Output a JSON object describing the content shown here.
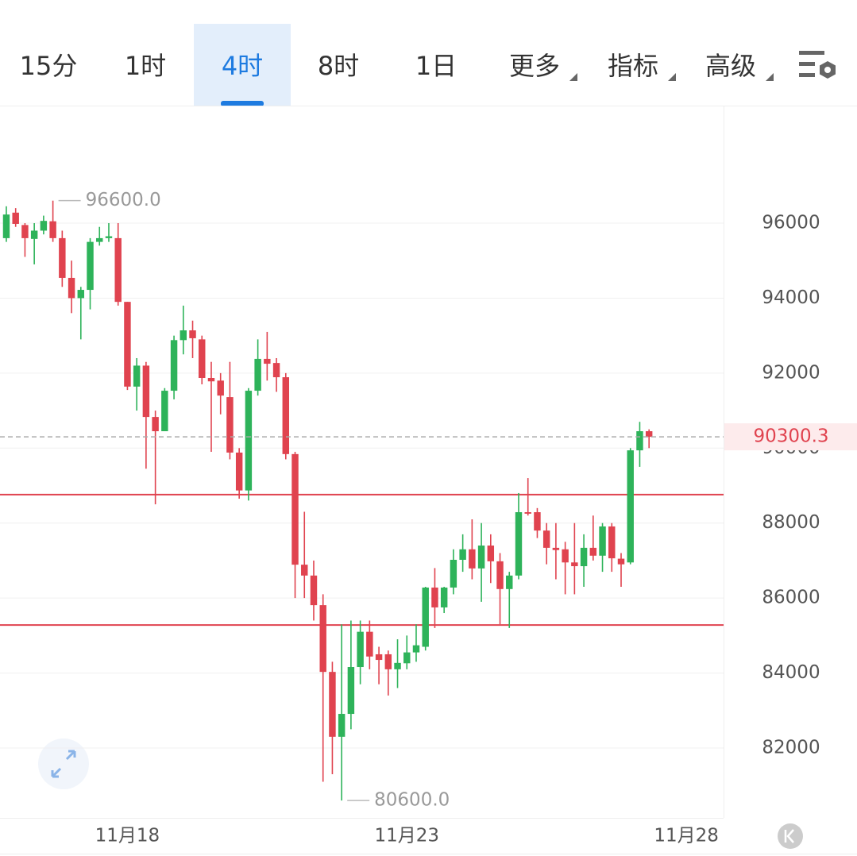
{
  "tabs": [
    "15分",
    "1时",
    "4时",
    "8时",
    "1日",
    "更多",
    "指标",
    "高级"
  ],
  "active_tab": 2,
  "chart_data": {
    "type": "candlestick",
    "up_color": "#2eb35a",
    "down_color": "#e0434f",
    "open": [
      95600,
      96280,
      95950,
      95580,
      95800,
      96050,
      95600,
      94540,
      94000,
      94220,
      95500,
      95600,
      95600,
      93900,
      91640,
      92200,
      90830,
      90450,
      91530,
      92880,
      93140,
      92900,
      91870,
      91800,
      91360,
      89880,
      88870,
      91530,
      92380,
      92270,
      91890,
      89840,
      86890,
      86600,
      85810,
      84030,
      82300,
      82910,
      84160,
      85100,
      84500,
      84500,
      84100,
      84260,
      84550,
      84700,
      86280,
      85750,
      86280,
      87020,
      87300,
      86790,
      87400,
      86980,
      86240,
      86600,
      88290,
      88290,
      87800,
      87340,
      87300,
      86950,
      86850,
      87340,
      87130,
      87910,
      87050,
      86950,
      89940,
      90450
    ],
    "high": [
      96450,
      96400,
      96000,
      96000,
      96200,
      96600,
      95800,
      95000,
      94300,
      95600,
      95900,
      96000,
      96000,
      93900,
      92400,
      92300,
      91000,
      91600,
      93000,
      93800,
      93400,
      93000,
      92300,
      92000,
      92300,
      90000,
      91600,
      92900,
      93100,
      92400,
      92000,
      89900,
      88300,
      87000,
      86100,
      84300,
      85300,
      85400,
      85400,
      85400,
      84700,
      84600,
      84900,
      85000,
      85300,
      86300,
      86800,
      86300,
      87300,
      87700,
      88100,
      88000,
      87700,
      87200,
      86700,
      88800,
      89200,
      88400,
      88000,
      88000,
      87500,
      88000,
      87700,
      88200,
      88000,
      88000,
      87200,
      90000,
      90700,
      90500
    ],
    "low": [
      95500,
      95900,
      95100,
      94900,
      95700,
      95500,
      94300,
      93600,
      92900,
      93700,
      95400,
      95500,
      93800,
      91550,
      91000,
      89450,
      88500,
      90600,
      91300,
      92500,
      92400,
      91700,
      89900,
      90900,
      89700,
      88650,
      88600,
      91400,
      91800,
      91500,
      89700,
      86000,
      86000,
      85400,
      81100,
      81300,
      80600,
      82500,
      83700,
      84100,
      83700,
      83400,
      83600,
      84100,
      84300,
      84600,
      85200,
      85600,
      86100,
      86700,
      86500,
      85900,
      86400,
      85300,
      85200,
      86500,
      88200,
      87600,
      86900,
      86500,
      86100,
      86100,
      86300,
      87000,
      86700,
      86700,
      86300,
      86900,
      89500,
      90000
    ],
    "close": [
      96230,
      95980,
      95600,
      95800,
      96060,
      95600,
      94540,
      94000,
      94220,
      95500,
      95600,
      95650,
      93900,
      91640,
      92200,
      90830,
      90450,
      91530,
      92880,
      93140,
      92930,
      91870,
      91780,
      91400,
      89880,
      88870,
      91530,
      92380,
      92250,
      91890,
      89840,
      86890,
      86600,
      85810,
      84030,
      82300,
      82910,
      84160,
      85100,
      84440,
      84350,
      84100,
      84270,
      84550,
      84740,
      86280,
      85750,
      86280,
      87020,
      87300,
      86790,
      87400,
      86980,
      86240,
      86600,
      88290,
      88250,
      87800,
      87340,
      87280,
      86950,
      86850,
      87340,
      87130,
      87910,
      87060,
      86900,
      89940,
      90450,
      90300
    ],
    "ylim": [
      80136,
      99135
    ],
    "yticks": [
      82000,
      84000,
      86000,
      88000,
      90000,
      92000,
      94000,
      96000
    ],
    "xlim": [
      -0.68,
      77
    ],
    "xticks": [
      {
        "value": 13,
        "label": "11月18"
      },
      {
        "value": 43,
        "label": "11月23"
      },
      {
        "value": 73,
        "label": "11月28"
      }
    ],
    "grid": true,
    "last_price": 90300.3,
    "levels": [
      88760,
      85280
    ],
    "level_color": "#e0434f",
    "annotations": [
      {
        "x": 5,
        "value": 96600,
        "label": "96600.0"
      },
      {
        "x": 36,
        "value": 80600,
        "label": "80600.0"
      }
    ]
  }
}
